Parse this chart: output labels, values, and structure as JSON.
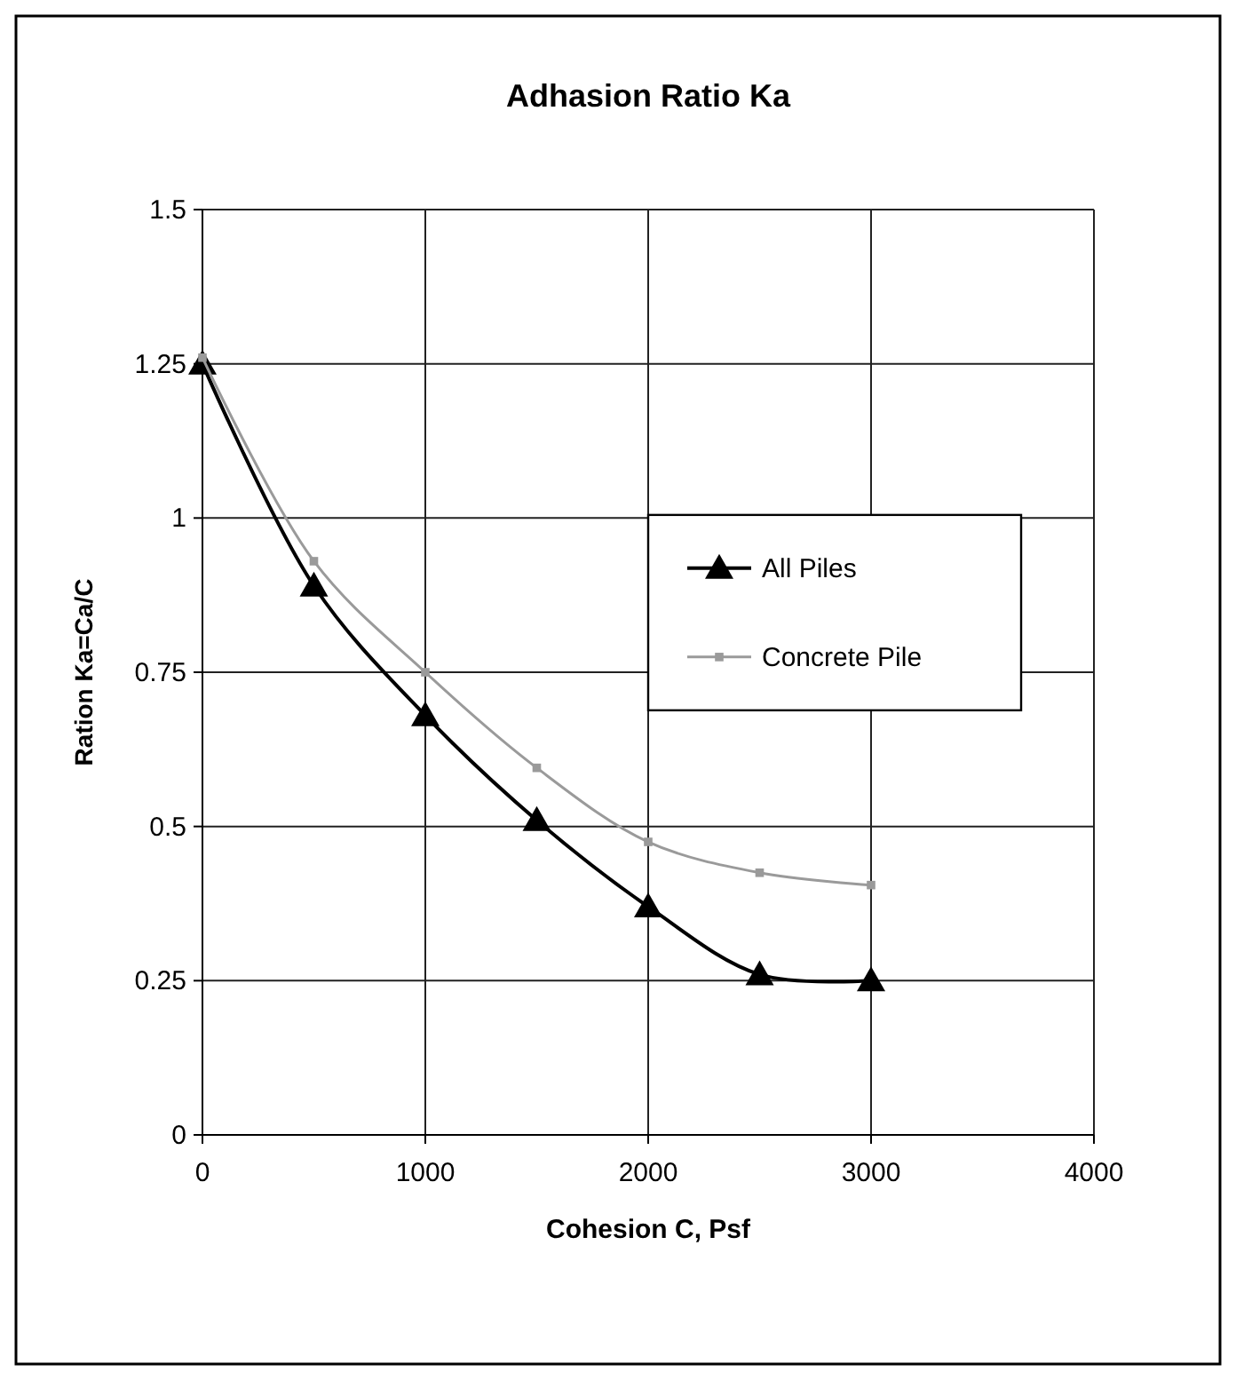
{
  "chart_data": {
    "type": "line",
    "title": "Adhasion Ratio Ka",
    "xlabel": "Cohesion C, Psf",
    "ylabel": "Ration Ka=Ca/C",
    "x": [
      0,
      500,
      1000,
      1500,
      2000,
      2500,
      3000
    ],
    "series": [
      {
        "name": "All Piles",
        "color": "#000000",
        "marker": "triangle",
        "values": [
          1.25,
          0.89,
          0.68,
          0.51,
          0.37,
          0.26,
          0.25
        ]
      },
      {
        "name": "Concrete Pile",
        "color": "#9a9a9a",
        "marker": "square",
        "values": [
          1.26,
          0.93,
          0.75,
          0.595,
          0.475,
          0.425,
          0.405
        ]
      }
    ],
    "xlim": [
      0,
      4000
    ],
    "xticks": [
      0,
      1000,
      2000,
      3000,
      4000
    ],
    "ylim": [
      0,
      1.5
    ],
    "yticks": [
      0,
      0.25,
      0.5,
      0.75,
      1,
      1.25,
      1.5
    ],
    "grid": true,
    "legend": "right",
    "line_style": "solid"
  }
}
